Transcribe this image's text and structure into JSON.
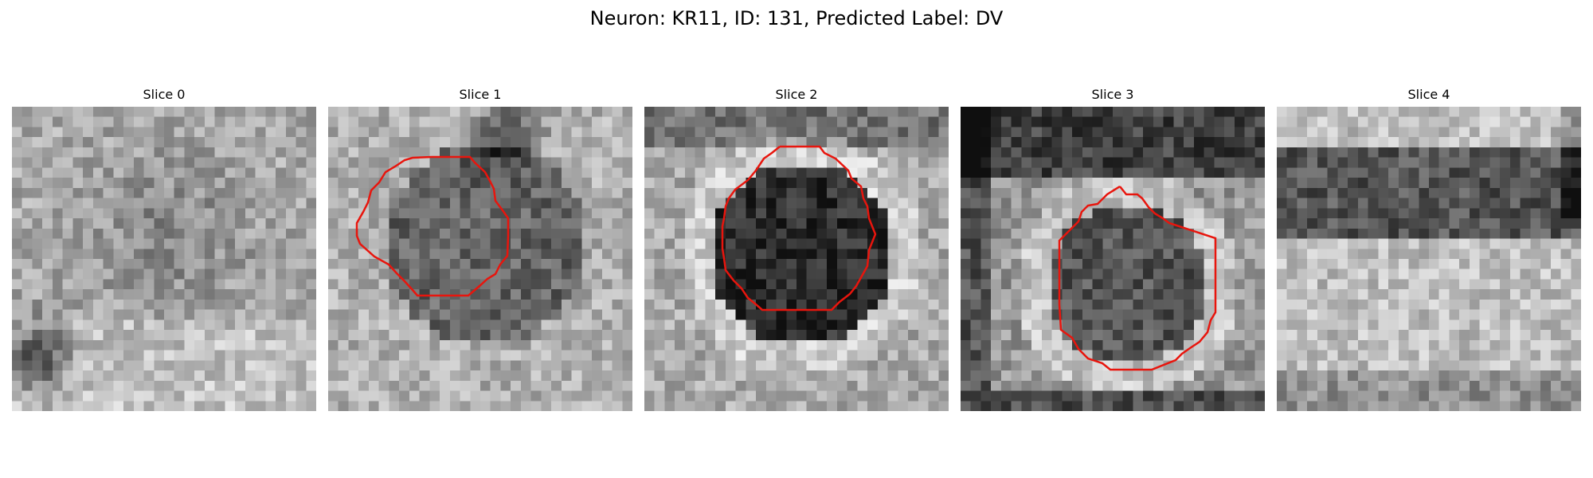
{
  "title": "Neuron: KR11, ID: 131, Predicted Label: DV",
  "contour_color": "#e8150d",
  "panels": [
    {
      "label": "Slice 0",
      "has_contour": false
    },
    {
      "label": "Slice 1",
      "has_contour": true
    },
    {
      "label": "Slice 2",
      "has_contour": true
    },
    {
      "label": "Slice 3",
      "has_contour": true
    },
    {
      "label": "Slice 4",
      "has_contour": false
    }
  ]
}
